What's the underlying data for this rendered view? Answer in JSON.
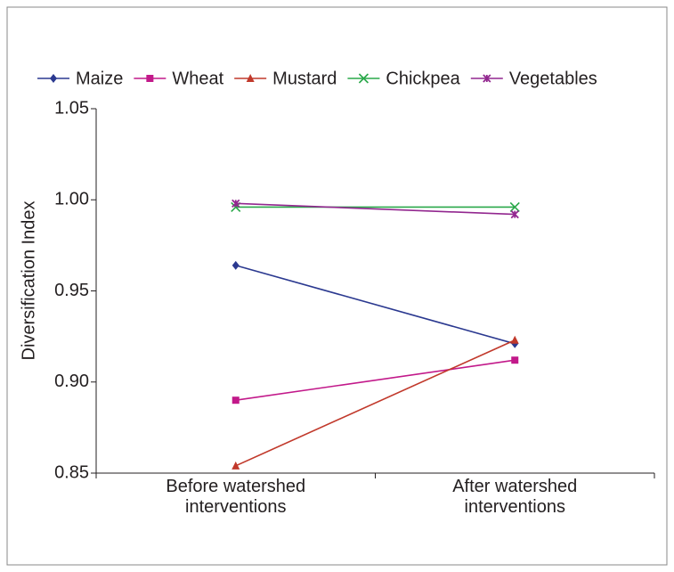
{
  "chart_data": {
    "type": "line",
    "categories": [
      "Before watershed interventions",
      "After watershed interventions"
    ],
    "y_label": "Diversification Index",
    "ylim": [
      0.85,
      1.05
    ],
    "yticks": [
      0.85,
      {
        "value": 0.9,
        "label": "0.90"
      },
      0.95,
      {
        "value": 1.0,
        "label": "1.00"
      },
      1.05
    ],
    "series": [
      {
        "name": "Maize",
        "color": "#2b3990",
        "marker": "diamond",
        "values": [
          0.964,
          0.921
        ]
      },
      {
        "name": "Wheat",
        "color": "#c2198a",
        "marker": "square",
        "values": [
          0.89,
          0.912
        ]
      },
      {
        "name": "Mustard",
        "color": "#c1392b",
        "marker": "triangle",
        "values": [
          0.854,
          0.923
        ]
      },
      {
        "name": "Chickpea",
        "color": "#2aa84a",
        "marker": "x",
        "values": [
          0.996,
          0.996
        ]
      },
      {
        "name": "Vegetables",
        "color": "#92278f",
        "marker": "star",
        "values": [
          0.998,
          0.992
        ]
      }
    ],
    "legend": "top"
  }
}
